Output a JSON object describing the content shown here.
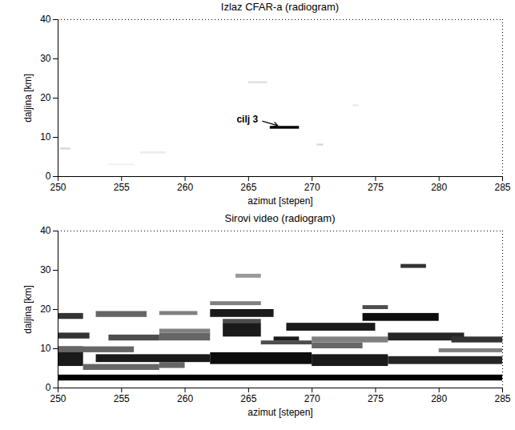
{
  "chart_data": [
    {
      "type": "heatmap",
      "title": "Izlaz CFAR-a (radiogram)",
      "x_label": "azimut [stepen]",
      "y_label": "daljina [km]",
      "xlim": [
        250,
        285
      ],
      "xticks": [
        250,
        255,
        260,
        265,
        270,
        275,
        280,
        285
      ],
      "ylim": [
        0,
        40
      ],
      "yticks": [
        0,
        10,
        20,
        30,
        40
      ],
      "value_range": [
        0,
        1
      ],
      "cells": [
        {
          "x1": 266.7,
          "x2": 269.0,
          "y1": 12.1,
          "y2": 12.8,
          "value": 1.0
        },
        {
          "x1": 265.0,
          "x2": 266.5,
          "y1": 23.7,
          "y2": 24.2,
          "value": 0.12
        },
        {
          "x1": 250.2,
          "x2": 251.0,
          "y1": 6.8,
          "y2": 7.3,
          "value": 0.15
        },
        {
          "x1": 256.5,
          "x2": 258.5,
          "y1": 5.8,
          "y2": 6.3,
          "value": 0.08
        },
        {
          "x1": 270.4,
          "x2": 270.9,
          "y1": 7.8,
          "y2": 8.3,
          "value": 0.15
        },
        {
          "x1": 273.2,
          "x2": 273.7,
          "y1": 17.8,
          "y2": 18.3,
          "value": 0.08
        },
        {
          "x1": 254.0,
          "x2": 256.0,
          "y1": 2.8,
          "y2": 3.2,
          "value": 0.06
        }
      ],
      "annotations": [
        {
          "text": "cilj 3",
          "x": 264.9,
          "y": 14.6,
          "arrow": [
            [
              266.1,
              14.1
            ],
            [
              267.3,
              13.0
            ]
          ]
        }
      ]
    },
    {
      "type": "heatmap",
      "title": "Sirovi video (radiogram)",
      "x_label": "azimut [stepen]",
      "y_label": "daljina [km]",
      "xlim": [
        250,
        285
      ],
      "xticks": [
        250,
        255,
        260,
        265,
        270,
        275,
        280,
        285
      ],
      "ylim": [
        0,
        40
      ],
      "yticks": [
        0,
        10,
        20,
        30,
        40
      ],
      "value_range": [
        0,
        1
      ],
      "cells": [
        {
          "x1": 250,
          "x2": 285,
          "y1": 1.8,
          "y2": 3.3,
          "value": 1.0
        },
        {
          "x1": 250,
          "x2": 252,
          "y1": 5.5,
          "y2": 10.5,
          "value": 0.9
        },
        {
          "x1": 252,
          "x2": 258,
          "y1": 4.5,
          "y2": 6,
          "value": 0.6
        },
        {
          "x1": 253,
          "x2": 262,
          "y1": 6.5,
          "y2": 8.5,
          "value": 0.9
        },
        {
          "x1": 258,
          "x2": 260,
          "y1": 5,
          "y2": 6.5,
          "value": 0.6
        },
        {
          "x1": 262,
          "x2": 270,
          "y1": 6,
          "y2": 9,
          "value": 0.95
        },
        {
          "x1": 270,
          "x2": 276,
          "y1": 5.5,
          "y2": 8.5,
          "value": 0.9
        },
        {
          "x1": 276,
          "x2": 285,
          "y1": 6,
          "y2": 8,
          "value": 0.85
        },
        {
          "x1": 250,
          "x2": 256,
          "y1": 9,
          "y2": 10.5,
          "value": 0.6
        },
        {
          "x1": 280,
          "x2": 285,
          "y1": 9,
          "y2": 10,
          "value": 0.5
        },
        {
          "x1": 250,
          "x2": 252.5,
          "y1": 12.5,
          "y2": 14,
          "value": 0.8
        },
        {
          "x1": 254,
          "x2": 258,
          "y1": 12,
          "y2": 13.5,
          "value": 0.7
        },
        {
          "x1": 258,
          "x2": 262,
          "y1": 12,
          "y2": 14,
          "value": 0.6
        },
        {
          "x1": 258,
          "x2": 262,
          "y1": 14,
          "y2": 15,
          "value": 0.5
        },
        {
          "x1": 263,
          "x2": 266,
          "y1": 13,
          "y2": 16.5,
          "value": 0.9
        },
        {
          "x1": 263,
          "x2": 266,
          "y1": 16.5,
          "y2": 17.5,
          "value": 0.7
        },
        {
          "x1": 262,
          "x2": 267,
          "y1": 18,
          "y2": 20,
          "value": 0.9
        },
        {
          "x1": 266,
          "x2": 270,
          "y1": 11,
          "y2": 12,
          "value": 0.7
        },
        {
          "x1": 267,
          "x2": 269,
          "y1": 12,
          "y2": 13,
          "value": 0.9
        },
        {
          "x1": 270,
          "x2": 274,
          "y1": 10,
          "y2": 11.5,
          "value": 0.6
        },
        {
          "x1": 270,
          "x2": 276,
          "y1": 11.5,
          "y2": 13,
          "value": 0.5
        },
        {
          "x1": 268,
          "x2": 275,
          "y1": 14.5,
          "y2": 16.5,
          "value": 0.9
        },
        {
          "x1": 274,
          "x2": 280,
          "y1": 17,
          "y2": 19,
          "value": 0.95
        },
        {
          "x1": 274,
          "x2": 276,
          "y1": 20,
          "y2": 21,
          "value": 0.7
        },
        {
          "x1": 276,
          "x2": 282,
          "y1": 12,
          "y2": 14,
          "value": 0.85
        },
        {
          "x1": 281,
          "x2": 285,
          "y1": 11.5,
          "y2": 13,
          "value": 0.8
        },
        {
          "x1": 250,
          "x2": 252,
          "y1": 17.5,
          "y2": 19,
          "value": 0.8
        },
        {
          "x1": 253,
          "x2": 257,
          "y1": 18,
          "y2": 19.5,
          "value": 0.6
        },
        {
          "x1": 258,
          "x2": 261,
          "y1": 18.5,
          "y2": 19.5,
          "value": 0.5
        },
        {
          "x1": 262,
          "x2": 266,
          "y1": 21,
          "y2": 22,
          "value": 0.5
        },
        {
          "x1": 264,
          "x2": 266,
          "y1": 28,
          "y2": 29,
          "value": 0.4
        },
        {
          "x1": 277,
          "x2": 279,
          "y1": 30.5,
          "y2": 31.5,
          "value": 0.8
        }
      ]
    }
  ]
}
